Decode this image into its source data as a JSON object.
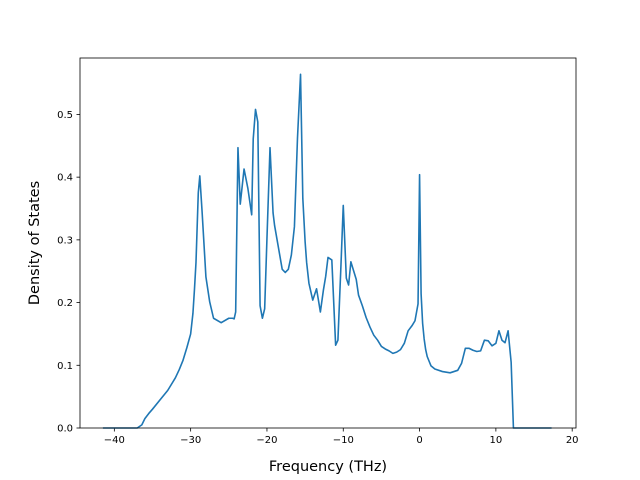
{
  "chart_data": {
    "type": "line",
    "title": "",
    "xlabel": "Frequency (THz)",
    "ylabel": "Density of States",
    "xlim": [
      -44.5,
      20.5
    ],
    "ylim": [
      0.0,
      0.59
    ],
    "xticks": [
      -40,
      -30,
      -20,
      -10,
      0,
      10,
      20
    ],
    "xtick_labels": [
      "−40",
      "−30",
      "−20",
      "−10",
      "0",
      "10",
      "20"
    ],
    "yticks": [
      0.0,
      0.1,
      0.2,
      0.3,
      0.4,
      0.5
    ],
    "ytick_labels": [
      "0.0",
      "0.1",
      "0.2",
      "0.3",
      "0.4",
      "0.5"
    ],
    "grid": false,
    "legend": false,
    "line_color": "#1f77b4",
    "series": [
      {
        "x": [
          -41.5,
          -37.0,
          -36.4,
          -36.0,
          -35.5,
          -35.0,
          -34.0,
          -33.0,
          -32.0,
          -31.5,
          -31.0,
          -30.5,
          -30.0,
          -29.7,
          -29.5,
          -29.3,
          -29.0,
          -28.8,
          -28.5,
          -28.0,
          -27.5,
          -27.0,
          -26.0,
          -25.0,
          -24.5,
          -24.3,
          -24.1,
          -23.8,
          -23.5,
          -23.0,
          -22.5,
          -22.0,
          -21.8,
          -21.5,
          -21.2,
          -20.9,
          -20.6,
          -20.3,
          -20.0,
          -19.6,
          -19.2,
          -19.0,
          -18.5,
          -18.0,
          -17.6,
          -17.2,
          -16.8,
          -16.4,
          -16.0,
          -15.6,
          -15.3,
          -15.0,
          -14.8,
          -14.5,
          -14.0,
          -13.5,
          -13.0,
          -12.6,
          -12.3,
          -12.0,
          -11.5,
          -11.0,
          -10.7,
          -10.3,
          -10.0,
          -9.6,
          -9.3,
          -9.0,
          -8.7,
          -8.3,
          -8.0,
          -7.5,
          -7.0,
          -6.5,
          -6.0,
          -5.5,
          -5.0,
          -4.5,
          -4.0,
          -3.5,
          -3.0,
          -2.5,
          -2.0,
          -1.5,
          -1.0,
          -0.6,
          -0.2,
          0.0,
          0.2,
          0.4,
          0.6,
          0.8,
          1.0,
          1.5,
          2.0,
          3.0,
          4.0,
          5.0,
          5.5,
          6.0,
          6.5,
          7.0,
          7.5,
          8.0,
          8.5,
          9.0,
          9.5,
          10.0,
          10.4,
          10.8,
          11.2,
          11.6,
          12.0,
          12.3,
          12.5,
          13.0,
          17.3
        ],
        "y": [
          0.0,
          0.0,
          0.005,
          0.015,
          0.023,
          0.03,
          0.045,
          0.06,
          0.08,
          0.093,
          0.108,
          0.128,
          0.15,
          0.183,
          0.221,
          0.264,
          0.375,
          0.402,
          0.345,
          0.241,
          0.201,
          0.175,
          0.168,
          0.175,
          0.175,
          0.174,
          0.185,
          0.447,
          0.357,
          0.413,
          0.382,
          0.34,
          0.461,
          0.508,
          0.488,
          0.195,
          0.175,
          0.19,
          0.302,
          0.447,
          0.343,
          0.323,
          0.288,
          0.253,
          0.248,
          0.253,
          0.276,
          0.321,
          0.462,
          0.564,
          0.366,
          0.297,
          0.264,
          0.231,
          0.204,
          0.222,
          0.185,
          0.22,
          0.242,
          0.272,
          0.268,
          0.132,
          0.14,
          0.26,
          0.355,
          0.239,
          0.228,
          0.265,
          0.253,
          0.237,
          0.212,
          0.195,
          0.176,
          0.161,
          0.148,
          0.14,
          0.13,
          0.126,
          0.123,
          0.119,
          0.121,
          0.125,
          0.135,
          0.155,
          0.163,
          0.171,
          0.198,
          0.404,
          0.214,
          0.167,
          0.142,
          0.125,
          0.114,
          0.099,
          0.094,
          0.09,
          0.088,
          0.092,
          0.103,
          0.127,
          0.127,
          0.124,
          0.122,
          0.123,
          0.14,
          0.139,
          0.131,
          0.135,
          0.155,
          0.14,
          0.136,
          0.155,
          0.105,
          0.0,
          0.0,
          0.0,
          0.0
        ]
      }
    ]
  }
}
